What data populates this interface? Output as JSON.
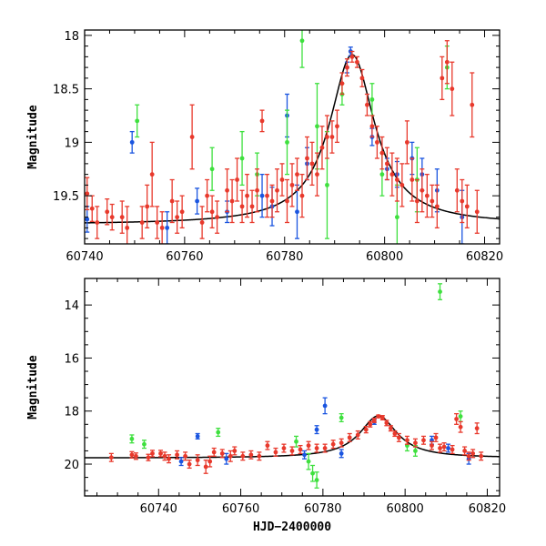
{
  "chart_data": [
    {
      "type": "scatter",
      "title": "",
      "xlabel": "",
      "ylabel": "Magnitude",
      "xlim": [
        60740,
        60823
      ],
      "ylim": [
        19.95,
        17.95
      ],
      "y_inverted": true,
      "grid": false,
      "xticks": [
        60740,
        60760,
        60780,
        60800,
        60820
      ],
      "yticks": [
        18,
        18.5,
        19,
        19.5
      ],
      "ytick_labels": [
        "18",
        "18.5",
        "19",
        "19.5"
      ],
      "model_curve": {
        "type": "lorentzian",
        "baseline": 19.77,
        "peak_x": 60793.5,
        "amplitude": 1.59,
        "width": 5.5
      },
      "series": [
        {
          "color": "#1a55e0",
          "points": [
            [
              60740.5,
              19.72,
              0.12
            ],
            [
              60749.5,
              19.0,
              0.1
            ],
            [
              60756.5,
              19.8,
              0.15
            ],
            [
              60762.5,
              19.55,
              0.12
            ],
            [
              60768.5,
              19.65,
              0.1
            ],
            [
              60775.5,
              19.5,
              0.2
            ],
            [
              60777.5,
              19.6,
              0.18
            ],
            [
              60780.5,
              18.75,
              0.2
            ],
            [
              60782.5,
              19.65,
              0.25
            ],
            [
              60784.5,
              19.2,
              0.15
            ],
            [
              60792.5,
              18.3,
              0.05
            ],
            [
              60793.2,
              18.15,
              0.04
            ],
            [
              60797.5,
              18.95,
              0.08
            ],
            [
              60800.5,
              19.25,
              0.1
            ],
            [
              60802.5,
              19.3,
              0.12
            ],
            [
              60805.5,
              19.15,
              0.15
            ],
            [
              60807.5,
              19.3,
              0.15
            ],
            [
              60810.5,
              19.45,
              0.2
            ],
            [
              60815.5,
              19.7,
              0.25
            ]
          ]
        },
        {
          "color": "#3ee03e",
          "points": [
            [
              60750.5,
              18.8,
              0.15
            ],
            [
              60765.5,
              19.25,
              0.2
            ],
            [
              60771.5,
              19.15,
              0.25
            ],
            [
              60774.5,
              19.3,
              0.2
            ],
            [
              60780.5,
              19.0,
              0.3
            ],
            [
              60783.5,
              18.05,
              0.25
            ],
            [
              60786.5,
              18.85,
              0.4
            ],
            [
              60788.5,
              19.4,
              0.5
            ],
            [
              60791.5,
              18.55,
              0.1
            ],
            [
              60797.5,
              18.6,
              0.15
            ],
            [
              60799.5,
              19.3,
              0.2
            ],
            [
              60802.5,
              19.7,
              0.3
            ],
            [
              60806.5,
              19.35,
              0.3
            ],
            [
              60812.5,
              18.3,
              0.2
            ]
          ]
        },
        {
          "color": "#e8392c",
          "points": [
            [
              60740.5,
              19.48,
              0.15
            ],
            [
              60741.5,
              19.62,
              0.12
            ],
            [
              60742.5,
              19.75,
              0.15
            ],
            [
              60744.5,
              19.65,
              0.12
            ],
            [
              60745.5,
              19.7,
              0.12
            ],
            [
              60747.5,
              19.7,
              0.15
            ],
            [
              60748.5,
              19.8,
              0.2
            ],
            [
              60751.5,
              19.75,
              0.15
            ],
            [
              60752.5,
              19.6,
              0.2
            ],
            [
              60753.5,
              19.3,
              0.3
            ],
            [
              60754.5,
              19.75,
              0.15
            ],
            [
              60755.5,
              19.8,
              0.15
            ],
            [
              60757.5,
              19.55,
              0.2
            ],
            [
              60758.5,
              19.7,
              0.15
            ],
            [
              60759.5,
              19.65,
              0.15
            ],
            [
              60761.5,
              18.95,
              0.3
            ],
            [
              60763.5,
              19.75,
              0.15
            ],
            [
              60764.5,
              19.5,
              0.15
            ],
            [
              60765.5,
              19.65,
              0.15
            ],
            [
              60766.5,
              19.7,
              0.15
            ],
            [
              60768.5,
              19.45,
              0.2
            ],
            [
              60769.5,
              19.55,
              0.2
            ],
            [
              60770.5,
              19.35,
              0.2
            ],
            [
              60771.5,
              19.6,
              0.15
            ],
            [
              60772.5,
              19.5,
              0.2
            ],
            [
              60773.5,
              19.6,
              0.15
            ],
            [
              60774.5,
              19.45,
              0.2
            ],
            [
              60775.5,
              18.8,
              0.1
            ],
            [
              60776.5,
              19.5,
              0.2
            ],
            [
              60777.5,
              19.55,
              0.15
            ],
            [
              60778.5,
              19.45,
              0.2
            ],
            [
              60779.5,
              19.35,
              0.15
            ],
            [
              60780.5,
              19.55,
              0.2
            ],
            [
              60781.5,
              19.4,
              0.2
            ],
            [
              60782.5,
              19.3,
              0.15
            ],
            [
              60783.5,
              19.5,
              0.2
            ],
            [
              60784.5,
              19.15,
              0.2
            ],
            [
              60785.5,
              19.2,
              0.2
            ],
            [
              60786.5,
              19.3,
              0.2
            ],
            [
              60787.5,
              19.05,
              0.2
            ],
            [
              60788.5,
              18.95,
              0.2
            ],
            [
              60789.5,
              18.95,
              0.15
            ],
            [
              60790.5,
              18.85,
              0.15
            ],
            [
              60791.5,
              18.45,
              0.1
            ],
            [
              60792.5,
              18.3,
              0.08
            ],
            [
              60793.5,
              18.2,
              0.05
            ],
            [
              60794.5,
              18.25,
              0.05
            ],
            [
              60795.5,
              18.4,
              0.08
            ],
            [
              60796.5,
              18.65,
              0.1
            ],
            [
              60797.5,
              18.85,
              0.1
            ],
            [
              60798.5,
              19.0,
              0.15
            ],
            [
              60799.5,
              19.1,
              0.15
            ],
            [
              60800.5,
              19.2,
              0.15
            ],
            [
              60801.5,
              19.3,
              0.2
            ],
            [
              60802.5,
              19.35,
              0.2
            ],
            [
              60803.5,
              19.4,
              0.2
            ],
            [
              60804.5,
              19.0,
              0.2
            ],
            [
              60805.5,
              19.35,
              0.2
            ],
            [
              60806.5,
              19.55,
              0.2
            ],
            [
              60807.5,
              19.45,
              0.2
            ],
            [
              60808.5,
              19.5,
              0.2
            ],
            [
              60809.5,
              19.55,
              0.15
            ],
            [
              60810.5,
              19.6,
              0.2
            ],
            [
              60811.5,
              18.4,
              0.2
            ],
            [
              60812.5,
              18.25,
              0.2
            ],
            [
              60813.5,
              18.5,
              0.25
            ],
            [
              60814.5,
              19.45,
              0.2
            ],
            [
              60815.5,
              19.55,
              0.2
            ],
            [
              60816.5,
              19.6,
              0.2
            ],
            [
              60817.5,
              18.65,
              0.3
            ],
            [
              60818.5,
              19.65,
              0.2
            ]
          ]
        }
      ]
    },
    {
      "type": "scatter",
      "title": "",
      "xlabel": "HJD−2400000",
      "ylabel": "Magnitude",
      "xlim": [
        60722,
        60823
      ],
      "ylim": [
        21.2,
        13.0
      ],
      "y_inverted": true,
      "grid": false,
      "xticks": [
        60740,
        60760,
        60780,
        60800,
        60820
      ],
      "yticks": [
        14,
        16,
        18,
        20
      ],
      "ytick_labels": [
        "14",
        "16",
        "18",
        "20"
      ],
      "model_curve": {
        "type": "lorentzian",
        "baseline": 19.77,
        "peak_x": 60793.5,
        "amplitude": 1.59,
        "width": 5.5
      },
      "series": [
        {
          "color": "#1a55e0",
          "points": [
            [
              60745.5,
              19.9,
              0.15
            ],
            [
              60749.5,
              18.95,
              0.1
            ],
            [
              60756.5,
              19.8,
              0.2
            ],
            [
              60775.5,
              19.65,
              0.15
            ],
            [
              60778.5,
              18.7,
              0.15
            ],
            [
              60780.5,
              17.8,
              0.3
            ],
            [
              60784.5,
              19.6,
              0.15
            ],
            [
              60792.5,
              18.4,
              0.1
            ],
            [
              60806.5,
              19.1,
              0.15
            ],
            [
              60810.5,
              19.4,
              0.15
            ],
            [
              60815.5,
              19.8,
              0.2
            ]
          ]
        },
        {
          "color": "#3ee03e",
          "points": [
            [
              60733.5,
              19.05,
              0.15
            ],
            [
              60736.5,
              19.25,
              0.15
            ],
            [
              60754.5,
              18.8,
              0.15
            ],
            [
              60773.5,
              19.15,
              0.2
            ],
            [
              60776.5,
              19.9,
              0.3
            ],
            [
              60777.5,
              20.35,
              0.3
            ],
            [
              60778.5,
              20.6,
              0.3
            ],
            [
              60784.5,
              18.25,
              0.15
            ],
            [
              60800.5,
              19.3,
              0.2
            ],
            [
              60802.5,
              19.5,
              0.2
            ],
            [
              60808.5,
              13.5,
              0.3
            ],
            [
              60813.5,
              18.2,
              0.2
            ]
          ]
        },
        {
          "color": "#e8392c",
          "points": [
            [
              60728.5,
              19.75,
              0.15
            ],
            [
              60733.5,
              19.65,
              0.12
            ],
            [
              60734.5,
              19.7,
              0.12
            ],
            [
              60737.5,
              19.75,
              0.12
            ],
            [
              60738.5,
              19.6,
              0.12
            ],
            [
              60740.5,
              19.6,
              0.12
            ],
            [
              60741.5,
              19.7,
              0.15
            ],
            [
              60742.5,
              19.8,
              0.15
            ],
            [
              60744.5,
              19.65,
              0.15
            ],
            [
              60746.5,
              19.7,
              0.15
            ],
            [
              60747.5,
              20.0,
              0.15
            ],
            [
              60749.5,
              19.85,
              0.2
            ],
            [
              60751.5,
              20.1,
              0.25
            ],
            [
              60752.5,
              19.9,
              0.2
            ],
            [
              60753.5,
              19.55,
              0.15
            ],
            [
              60755.5,
              19.6,
              0.15
            ],
            [
              60757.5,
              19.7,
              0.2
            ],
            [
              60758.5,
              19.5,
              0.15
            ],
            [
              60760.5,
              19.7,
              0.15
            ],
            [
              60762.5,
              19.65,
              0.15
            ],
            [
              60764.5,
              19.7,
              0.15
            ],
            [
              60766.5,
              19.3,
              0.15
            ],
            [
              60768.5,
              19.55,
              0.15
            ],
            [
              60770.5,
              19.4,
              0.15
            ],
            [
              60772.5,
              19.5,
              0.15
            ],
            [
              60774.5,
              19.45,
              0.15
            ],
            [
              60776.5,
              19.3,
              0.15
            ],
            [
              60778.5,
              19.4,
              0.15
            ],
            [
              60780.5,
              19.4,
              0.15
            ],
            [
              60782.5,
              19.25,
              0.15
            ],
            [
              60784.5,
              19.2,
              0.15
            ],
            [
              60786.5,
              19.0,
              0.15
            ],
            [
              60788.5,
              18.9,
              0.15
            ],
            [
              60790.5,
              18.7,
              0.12
            ],
            [
              60791.5,
              18.5,
              0.1
            ],
            [
              60792.5,
              18.35,
              0.08
            ],
            [
              60793.5,
              18.2,
              0.05
            ],
            [
              60794.5,
              18.25,
              0.08
            ],
            [
              60795.5,
              18.45,
              0.1
            ],
            [
              60796.5,
              18.65,
              0.1
            ],
            [
              60797.5,
              18.85,
              0.1
            ],
            [
              60798.5,
              19.0,
              0.15
            ],
            [
              60800.5,
              19.1,
              0.15
            ],
            [
              60802.5,
              19.2,
              0.15
            ],
            [
              60804.5,
              19.1,
              0.15
            ],
            [
              60806.5,
              19.3,
              0.15
            ],
            [
              60807.5,
              19.0,
              0.15
            ],
            [
              60808.5,
              19.4,
              0.15
            ],
            [
              60809.5,
              19.35,
              0.15
            ],
            [
              60811.5,
              19.45,
              0.15
            ],
            [
              60812.5,
              18.3,
              0.2
            ],
            [
              60813.5,
              18.6,
              0.2
            ],
            [
              60814.5,
              19.5,
              0.15
            ],
            [
              60815.5,
              19.7,
              0.15
            ],
            [
              60816.5,
              19.6,
              0.15
            ],
            [
              60817.5,
              18.65,
              0.2
            ],
            [
              60818.5,
              19.7,
              0.15
            ]
          ]
        }
      ]
    }
  ]
}
